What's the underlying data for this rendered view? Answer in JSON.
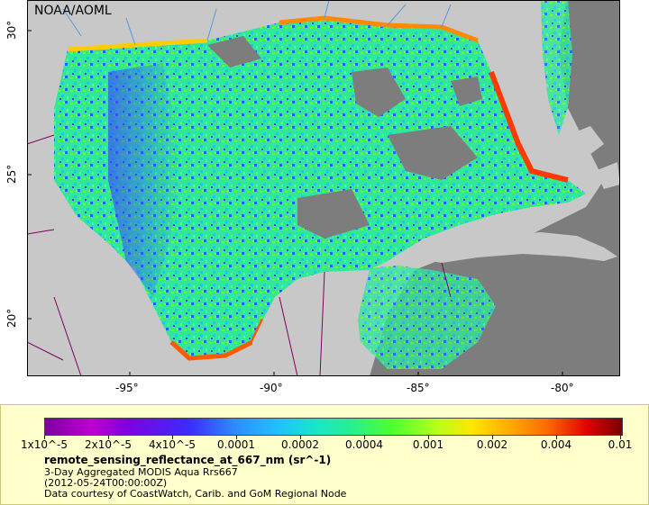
{
  "map": {
    "title": "NOAA/AOML",
    "lat_ticks": [
      "30°",
      "25°",
      "20°"
    ],
    "lon_ticks": [
      "-95°",
      "-90°",
      "-85°",
      "-80°"
    ],
    "colors": {
      "land": "#c8c8c8",
      "cloud_mask": "#7d7d7d",
      "rivers": "#5599dd",
      "borders": "#800060"
    }
  },
  "legend": {
    "tick_labels": [
      "1x10^-5",
      "2x10^-5",
      "4x10^-5",
      "0.0001",
      "0.0002",
      "0.0004",
      "0.001",
      "0.002",
      "0.004",
      "0.01"
    ],
    "variable": "remote_sensing_reflectance_at_667_nm (sr^-1)",
    "line1": "3-Day Aggregated MODIS Aqua Rrs667",
    "line2": "(2012-05-24T00:00:00Z)",
    "line3": "Data courtesy of CoastWatch, Carib. and GoM Regional Node",
    "colorscale": [
      "#7a00a0",
      "#c000d0",
      "#3a2cff",
      "#2f8cff",
      "#19e6c8",
      "#4cff30",
      "#ffe600",
      "#ff6a00",
      "#e00000",
      "#7a0000"
    ]
  }
}
